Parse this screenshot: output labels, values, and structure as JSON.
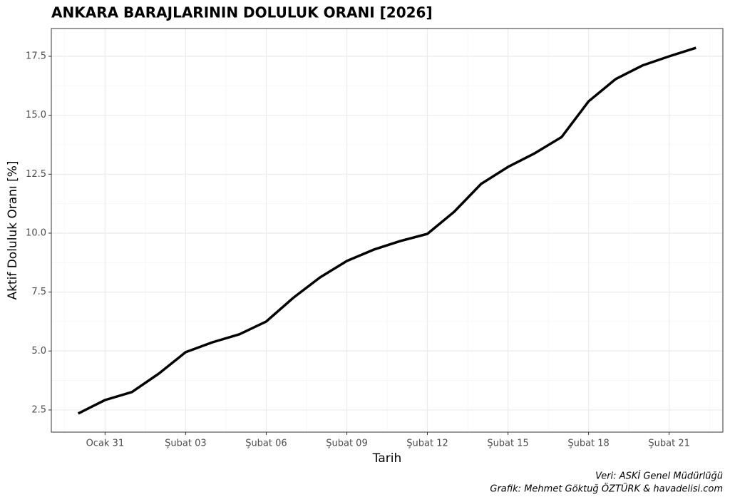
{
  "chart_data": {
    "type": "line",
    "title": "ANKARA BARAJLARININ DOLULUK ORANI [2026]",
    "x_label": "Tarih",
    "y_label": "Aktif Doluluk Oranı [%]",
    "caption": [
      "Veri: ASKİ Genel Müdürlüğü",
      "Grafik: Mehmet Göktuğ ÖZTÜRK & havadelisi.com"
    ],
    "x": [
      "01-30",
      "01-31",
      "02-01",
      "02-02",
      "02-03",
      "02-04",
      "02-05",
      "02-06",
      "02-07",
      "02-08",
      "02-09",
      "02-10",
      "02-11",
      "02-12",
      "02-13",
      "02-14",
      "02-15",
      "02-16",
      "02-17",
      "02-18",
      "02-19",
      "02-20",
      "02-21",
      "02-22"
    ],
    "values": [
      2.35,
      2.92,
      3.26,
      4.04,
      4.95,
      5.37,
      5.71,
      6.25,
      7.25,
      8.12,
      8.82,
      9.3,
      9.67,
      9.97,
      10.91,
      12.09,
      12.81,
      13.39,
      14.08,
      15.59,
      16.53,
      17.11,
      17.5,
      17.86
    ],
    "color": "#000000",
    "xlim": [
      "01-29",
      "02-23"
    ],
    "xticks": [
      {
        "value": "01-31",
        "label": "Ocak 31"
      },
      {
        "value": "02-03",
        "label": "Şubat 03"
      },
      {
        "value": "02-06",
        "label": "Şubat 06"
      },
      {
        "value": "02-09",
        "label": "Şubat 09"
      },
      {
        "value": "02-12",
        "label": "Şubat 12"
      },
      {
        "value": "02-15",
        "label": "Şubat 15"
      },
      {
        "value": "02-18",
        "label": "Şubat 18"
      },
      {
        "value": "02-21",
        "label": "Şubat 21"
      }
    ],
    "ylim": [
      1.56,
      18.68
    ],
    "yticks": [
      2.5,
      {
        "value": 5,
        "label": "5.0"
      },
      7.5,
      {
        "value": 10,
        "label": "10.0"
      },
      12.5,
      {
        "value": 15,
        "label": "15.0"
      },
      17.5
    ],
    "grid": true
  }
}
